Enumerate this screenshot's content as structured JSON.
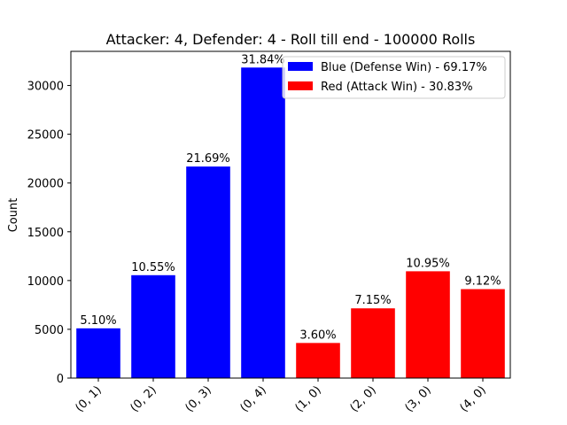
{
  "chart_data": {
    "type": "bar",
    "title": "Attacker: 4, Defender: 4 - Roll till end - 100000 Rolls",
    "xlabel": "",
    "ylabel": "Count",
    "ylim": [
      0,
      33500
    ],
    "yticks": [
      0,
      5000,
      10000,
      15000,
      20000,
      25000,
      30000
    ],
    "categories": [
      "(0, 1)",
      "(0, 2)",
      "(0, 3)",
      "(0, 4)",
      "(1, 0)",
      "(2, 0)",
      "(3, 0)",
      "(4, 0)"
    ],
    "values": [
      5100,
      10550,
      21690,
      31840,
      3600,
      7150,
      10950,
      9120
    ],
    "data_labels": [
      "5.10%",
      "10.55%",
      "21.69%",
      "31.84%",
      "3.60%",
      "7.15%",
      "10.95%",
      "9.12%"
    ],
    "bar_series": [
      0,
      0,
      0,
      0,
      1,
      1,
      1,
      1
    ],
    "series": [
      {
        "name": "Blue (Defense Win) - 69.17%",
        "color": "#0000ff"
      },
      {
        "name": "Red (Attack Win) - 30.83%",
        "color": "#ff0000"
      }
    ],
    "legend_position": "top-right",
    "grid": false
  }
}
